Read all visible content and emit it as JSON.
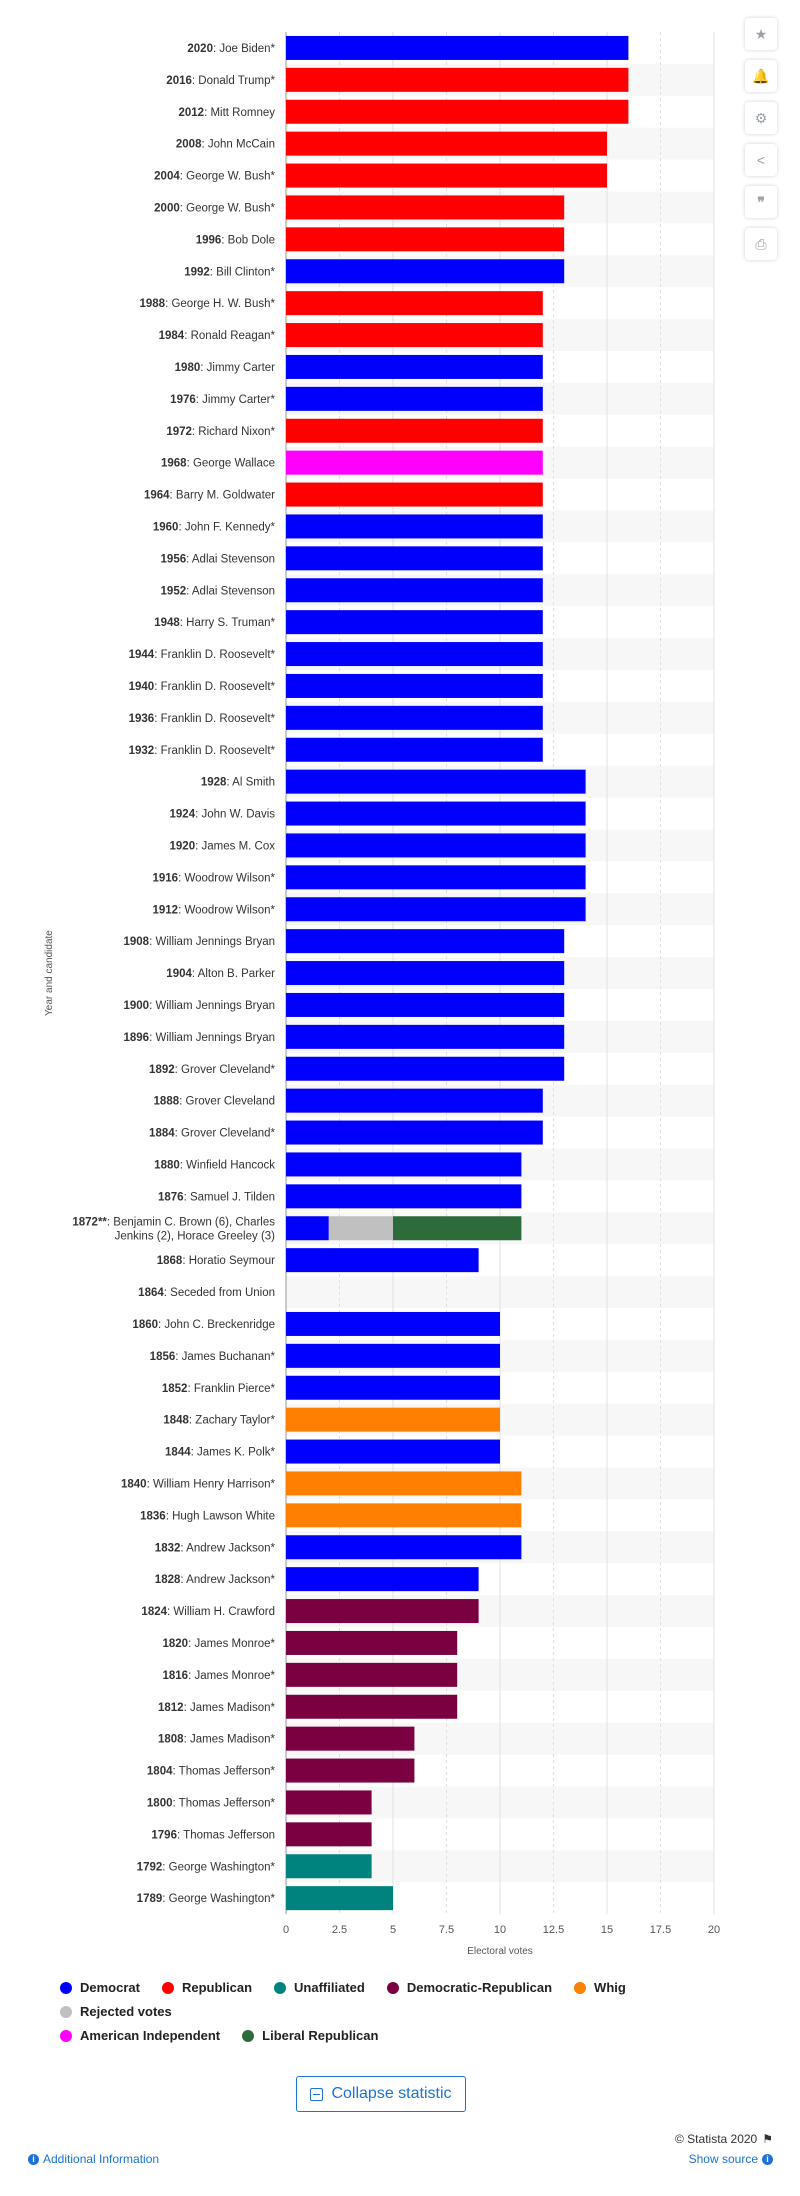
{
  "toolbar": {
    "icons": [
      "star-icon",
      "bell-icon",
      "gear-icon",
      "share-icon",
      "quote-icon",
      "print-icon"
    ]
  },
  "colors": {
    "Democrat": "#0000ff",
    "Republican": "#ff0000",
    "Unaffiliated": "#00827f",
    "Democratic-Republican": "#7b0041",
    "Whig": "#ff8000",
    "Rejected votes": "#c0c0c0",
    "American Independent": "#ff00ff",
    "Liberal Republican": "#2e6b3a"
  },
  "chart_data": {
    "type": "bar",
    "orientation": "horizontal",
    "xlabel": "Electoral votes",
    "ylabel": "Year and candidate",
    "xlim": [
      0,
      20
    ],
    "xticks": [
      "0",
      "2.5",
      "5",
      "7.5",
      "10",
      "12.5",
      "15",
      "17.5",
      "20"
    ],
    "grid": true,
    "legend_position": "bottom",
    "rows": [
      {
        "year": "2020",
        "name": ": Joe Biden*",
        "segments": [
          {
            "party": "Democrat",
            "value": 16
          }
        ]
      },
      {
        "year": "2016",
        "name": ": Donald Trump*",
        "segments": [
          {
            "party": "Republican",
            "value": 16
          }
        ]
      },
      {
        "year": "2012",
        "name": ": Mitt Romney",
        "segments": [
          {
            "party": "Republican",
            "value": 16
          }
        ]
      },
      {
        "year": "2008",
        "name": ": John McCain",
        "segments": [
          {
            "party": "Republican",
            "value": 15
          }
        ]
      },
      {
        "year": "2004",
        "name": ": George W. Bush*",
        "segments": [
          {
            "party": "Republican",
            "value": 15
          }
        ]
      },
      {
        "year": "2000",
        "name": ": George W. Bush*",
        "segments": [
          {
            "party": "Republican",
            "value": 13
          }
        ]
      },
      {
        "year": "1996",
        "name": ": Bob Dole",
        "segments": [
          {
            "party": "Republican",
            "value": 13
          }
        ]
      },
      {
        "year": "1992",
        "name": ": Bill Clinton*",
        "segments": [
          {
            "party": "Democrat",
            "value": 13
          }
        ]
      },
      {
        "year": "1988",
        "name": ": George H. W. Bush*",
        "segments": [
          {
            "party": "Republican",
            "value": 12
          }
        ]
      },
      {
        "year": "1984",
        "name": ": Ronald Reagan*",
        "segments": [
          {
            "party": "Republican",
            "value": 12
          }
        ]
      },
      {
        "year": "1980",
        "name": ": Jimmy Carter",
        "segments": [
          {
            "party": "Democrat",
            "value": 12
          }
        ]
      },
      {
        "year": "1976",
        "name": ": Jimmy Carter*",
        "segments": [
          {
            "party": "Democrat",
            "value": 12
          }
        ]
      },
      {
        "year": "1972",
        "name": ": Richard Nixon*",
        "segments": [
          {
            "party": "Republican",
            "value": 12
          }
        ]
      },
      {
        "year": "1968",
        "name": ": George Wallace",
        "segments": [
          {
            "party": "American Independent",
            "value": 12
          }
        ]
      },
      {
        "year": "1964",
        "name": ": Barry M. Goldwater",
        "segments": [
          {
            "party": "Republican",
            "value": 12
          }
        ]
      },
      {
        "year": "1960",
        "name": ": John F. Kennedy*",
        "segments": [
          {
            "party": "Democrat",
            "value": 12
          }
        ]
      },
      {
        "year": "1956",
        "name": ": Adlai Stevenson",
        "segments": [
          {
            "party": "Democrat",
            "value": 12
          }
        ]
      },
      {
        "year": "1952",
        "name": ": Adlai Stevenson",
        "segments": [
          {
            "party": "Democrat",
            "value": 12
          }
        ]
      },
      {
        "year": "1948",
        "name": ": Harry S. Truman*",
        "segments": [
          {
            "party": "Democrat",
            "value": 12
          }
        ]
      },
      {
        "year": "1944",
        "name": ": Franklin D. Roosevelt*",
        "segments": [
          {
            "party": "Democrat",
            "value": 12
          }
        ]
      },
      {
        "year": "1940",
        "name": ": Franklin D. Roosevelt*",
        "segments": [
          {
            "party": "Democrat",
            "value": 12
          }
        ]
      },
      {
        "year": "1936",
        "name": ": Franklin D. Roosevelt*",
        "segments": [
          {
            "party": "Democrat",
            "value": 12
          }
        ]
      },
      {
        "year": "1932",
        "name": ": Franklin D. Roosevelt*",
        "segments": [
          {
            "party": "Democrat",
            "value": 12
          }
        ]
      },
      {
        "year": "1928",
        "name": ": Al Smith",
        "segments": [
          {
            "party": "Democrat",
            "value": 14
          }
        ]
      },
      {
        "year": "1924",
        "name": ": John W. Davis",
        "segments": [
          {
            "party": "Democrat",
            "value": 14
          }
        ]
      },
      {
        "year": "1920",
        "name": ": James M. Cox",
        "segments": [
          {
            "party": "Democrat",
            "value": 14
          }
        ]
      },
      {
        "year": "1916",
        "name": ": Woodrow Wilson*",
        "segments": [
          {
            "party": "Democrat",
            "value": 14
          }
        ]
      },
      {
        "year": "1912",
        "name": ": Woodrow Wilson*",
        "segments": [
          {
            "party": "Democrat",
            "value": 14
          }
        ]
      },
      {
        "year": "1908",
        "name": ": William Jennings Bryan",
        "segments": [
          {
            "party": "Democrat",
            "value": 13
          }
        ]
      },
      {
        "year": "1904",
        "name": ": Alton B. Parker",
        "segments": [
          {
            "party": "Democrat",
            "value": 13
          }
        ]
      },
      {
        "year": "1900",
        "name": ": William Jennings Bryan",
        "segments": [
          {
            "party": "Democrat",
            "value": 13
          }
        ]
      },
      {
        "year": "1896",
        "name": ": William Jennings Bryan",
        "segments": [
          {
            "party": "Democrat",
            "value": 13
          }
        ]
      },
      {
        "year": "1892",
        "name": ": Grover Cleveland*",
        "segments": [
          {
            "party": "Democrat",
            "value": 13
          }
        ]
      },
      {
        "year": "1888",
        "name": ": Grover Cleveland",
        "segments": [
          {
            "party": "Democrat",
            "value": 12
          }
        ]
      },
      {
        "year": "1884",
        "name": ": Grover Cleveland*",
        "segments": [
          {
            "party": "Democrat",
            "value": 12
          }
        ]
      },
      {
        "year": "1880",
        "name": ": Winfield Hancock",
        "segments": [
          {
            "party": "Democrat",
            "value": 11
          }
        ]
      },
      {
        "year": "1876",
        "name": ": Samuel J. Tilden",
        "segments": [
          {
            "party": "Democrat",
            "value": 11
          }
        ]
      },
      {
        "year": "1872**",
        "name": ": Benjamin C. Brown (6), Charles",
        "name2": "Jenkins (2), Horace Greeley (3)",
        "segments": [
          {
            "party": "Democrat",
            "value": 2
          },
          {
            "party": "Rejected votes",
            "value": 3
          },
          {
            "party": "Liberal Republican",
            "value": 6
          }
        ]
      },
      {
        "year": "1868",
        "name": ": Horatio Seymour",
        "segments": [
          {
            "party": "Democrat",
            "value": 9
          }
        ]
      },
      {
        "year": "1864",
        "name": ": Seceded from Union",
        "segments": []
      },
      {
        "year": "1860",
        "name": ": John C. Breckenridge",
        "segments": [
          {
            "party": "Democrat",
            "value": 10
          }
        ]
      },
      {
        "year": "1856",
        "name": ": James Buchanan*",
        "segments": [
          {
            "party": "Democrat",
            "value": 10
          }
        ]
      },
      {
        "year": "1852",
        "name": ": Franklin Pierce*",
        "segments": [
          {
            "party": "Democrat",
            "value": 10
          }
        ]
      },
      {
        "year": "1848",
        "name": ": Zachary Taylor*",
        "segments": [
          {
            "party": "Whig",
            "value": 10
          }
        ]
      },
      {
        "year": "1844",
        "name": ": James K. Polk*",
        "segments": [
          {
            "party": "Democrat",
            "value": 10
          }
        ]
      },
      {
        "year": "1840",
        "name": ": William Henry Harrison*",
        "segments": [
          {
            "party": "Whig",
            "value": 11
          }
        ]
      },
      {
        "year": "1836",
        "name": ": Hugh Lawson White",
        "segments": [
          {
            "party": "Whig",
            "value": 11
          }
        ]
      },
      {
        "year": "1832",
        "name": ": Andrew Jackson*",
        "segments": [
          {
            "party": "Democrat",
            "value": 11
          }
        ]
      },
      {
        "year": "1828",
        "name": ": Andrew Jackson*",
        "segments": [
          {
            "party": "Democrat",
            "value": 9
          }
        ]
      },
      {
        "year": "1824",
        "name": ": William H. Crawford",
        "segments": [
          {
            "party": "Democratic-Republican",
            "value": 9
          }
        ]
      },
      {
        "year": "1820",
        "name": ": James Monroe*",
        "segments": [
          {
            "party": "Democratic-Republican",
            "value": 8
          }
        ]
      },
      {
        "year": "1816",
        "name": ": James Monroe*",
        "segments": [
          {
            "party": "Democratic-Republican",
            "value": 8
          }
        ]
      },
      {
        "year": "1812",
        "name": ": James Madison*",
        "segments": [
          {
            "party": "Democratic-Republican",
            "value": 8
          }
        ]
      },
      {
        "year": "1808",
        "name": ": James Madison*",
        "segments": [
          {
            "party": "Democratic-Republican",
            "value": 6
          }
        ]
      },
      {
        "year": "1804",
        "name": ": Thomas Jefferson*",
        "segments": [
          {
            "party": "Democratic-Republican",
            "value": 6
          }
        ]
      },
      {
        "year": "1800",
        "name": ": Thomas Jefferson*",
        "segments": [
          {
            "party": "Democratic-Republican",
            "value": 4
          }
        ]
      },
      {
        "year": "1796",
        "name": ": Thomas Jefferson",
        "segments": [
          {
            "party": "Democratic-Republican",
            "value": 4
          }
        ]
      },
      {
        "year": "1792",
        "name": ": George Washington*",
        "segments": [
          {
            "party": "Unaffiliated",
            "value": 4
          }
        ]
      },
      {
        "year": "1789",
        "name": ": George Washington*",
        "segments": [
          {
            "party": "Unaffiliated",
            "value": 5
          }
        ]
      }
    ]
  },
  "legend": {
    "row1": [
      "Democrat",
      "Republican",
      "Unaffiliated",
      "Democratic-Republican",
      "Whig",
      "Rejected votes"
    ],
    "row2": [
      "American Independent",
      "Liberal Republican"
    ]
  },
  "footer": {
    "collapse_label": "Collapse statistic",
    "additional_info": "Additional Information",
    "copyright": "© Statista 2020",
    "show_source": "Show source"
  }
}
